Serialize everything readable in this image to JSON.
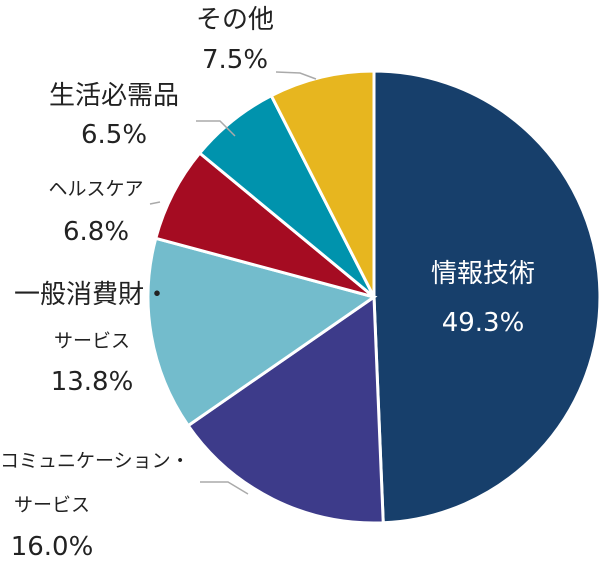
{
  "chart_data": {
    "type": "pie",
    "start_angle_deg": 0,
    "direction": "clockwise",
    "slices": [
      {
        "name": "情報技術",
        "value": 49.3,
        "value_label": "49.3%",
        "color": "#173f6b"
      },
      {
        "name": "コミュニケーション・サービス",
        "value": 16.0,
        "value_label": "16.0%",
        "color": "#3d3b8a"
      },
      {
        "name": "一般消費財・サービス",
        "value": 13.8,
        "value_label": "13.8%",
        "color": "#73bccc"
      },
      {
        "name": "ヘルスケア",
        "value": 6.8,
        "value_label": "6.8%",
        "color": "#a50c22"
      },
      {
        "name": "生活必需品",
        "value": 6.5,
        "value_label": "6.5%",
        "color": "#0093ad"
      },
      {
        "name": "その他",
        "value": 7.5,
        "value_label": "7.5%",
        "color": "#e7b61f"
      }
    ]
  },
  "labels": {
    "it": {
      "line1": "情報技術",
      "line2": "49.3%"
    },
    "comm": {
      "line1": "コミュニケーション・",
      "line2": "サービス",
      "line3": "16.0%"
    },
    "consumer": {
      "line1": "一般消費財・",
      "line2": "サービス",
      "line3": "13.8%"
    },
    "health": {
      "line1": "ヘルスケア",
      "line2": "6.8%"
    },
    "staples": {
      "line1": "生活必需品",
      "line2": "6.5%"
    },
    "other": {
      "line1": "その他",
      "line2": "7.5%"
    }
  }
}
